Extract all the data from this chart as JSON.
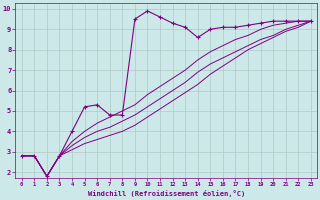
{
  "xlabel": "Windchill (Refroidissement éolien,°C)",
  "xlim": [
    -0.5,
    23.5
  ],
  "ylim": [
    1.7,
    10.3
  ],
  "xticks": [
    0,
    1,
    2,
    3,
    4,
    5,
    6,
    7,
    8,
    9,
    10,
    11,
    12,
    13,
    14,
    15,
    16,
    17,
    18,
    19,
    20,
    21,
    22,
    23
  ],
  "yticks": [
    2,
    3,
    4,
    5,
    6,
    7,
    8,
    9,
    10
  ],
  "bg_color": "#cce8e8",
  "line_color": "#800080",
  "grid_color": "#b0c8c8",
  "main_x": [
    0,
    1,
    2,
    3,
    4,
    5,
    6,
    7,
    8,
    9,
    10,
    11,
    12,
    13,
    14,
    15,
    16,
    17,
    18,
    19,
    20,
    21,
    22,
    23
  ],
  "main_y": [
    2.8,
    2.8,
    1.8,
    2.8,
    4.0,
    5.2,
    5.3,
    4.8,
    4.8,
    9.5,
    9.9,
    9.6,
    9.3,
    9.1,
    8.6,
    9.0,
    9.1,
    9.1,
    9.2,
    9.3,
    9.4,
    9.4,
    9.4,
    9.4
  ],
  "line2_x": [
    0,
    1,
    2,
    3,
    4,
    5,
    6,
    7,
    8,
    9,
    10,
    11,
    12,
    13,
    14,
    15,
    16,
    17,
    18,
    19,
    20,
    21,
    22,
    23
  ],
  "line2_y": [
    2.8,
    2.8,
    1.8,
    2.8,
    3.3,
    3.7,
    4.0,
    4.2,
    4.5,
    4.8,
    5.2,
    5.6,
    6.0,
    6.4,
    6.9,
    7.3,
    7.6,
    7.9,
    8.2,
    8.5,
    8.7,
    9.0,
    9.2,
    9.4
  ],
  "line3_x": [
    0,
    1,
    2,
    3,
    4,
    5,
    6,
    7,
    8,
    9,
    10,
    11,
    12,
    13,
    14,
    15,
    16,
    17,
    18,
    19,
    20,
    21,
    22,
    23
  ],
  "line3_y": [
    2.8,
    2.8,
    1.8,
    2.8,
    3.5,
    4.0,
    4.4,
    4.7,
    5.0,
    5.3,
    5.8,
    6.2,
    6.6,
    7.0,
    7.5,
    7.9,
    8.2,
    8.5,
    8.7,
    9.0,
    9.2,
    9.3,
    9.4,
    9.4
  ],
  "line4_x": [
    0,
    1,
    2,
    3,
    4,
    5,
    6,
    7,
    8,
    9,
    10,
    11,
    12,
    13,
    14,
    15,
    16,
    17,
    18,
    19,
    20,
    21,
    22,
    23
  ],
  "line4_y": [
    2.8,
    2.8,
    1.8,
    2.8,
    3.1,
    3.4,
    3.6,
    3.8,
    4.0,
    4.3,
    4.7,
    5.1,
    5.5,
    5.9,
    6.3,
    6.8,
    7.2,
    7.6,
    8.0,
    8.3,
    8.6,
    8.9,
    9.1,
    9.4
  ]
}
